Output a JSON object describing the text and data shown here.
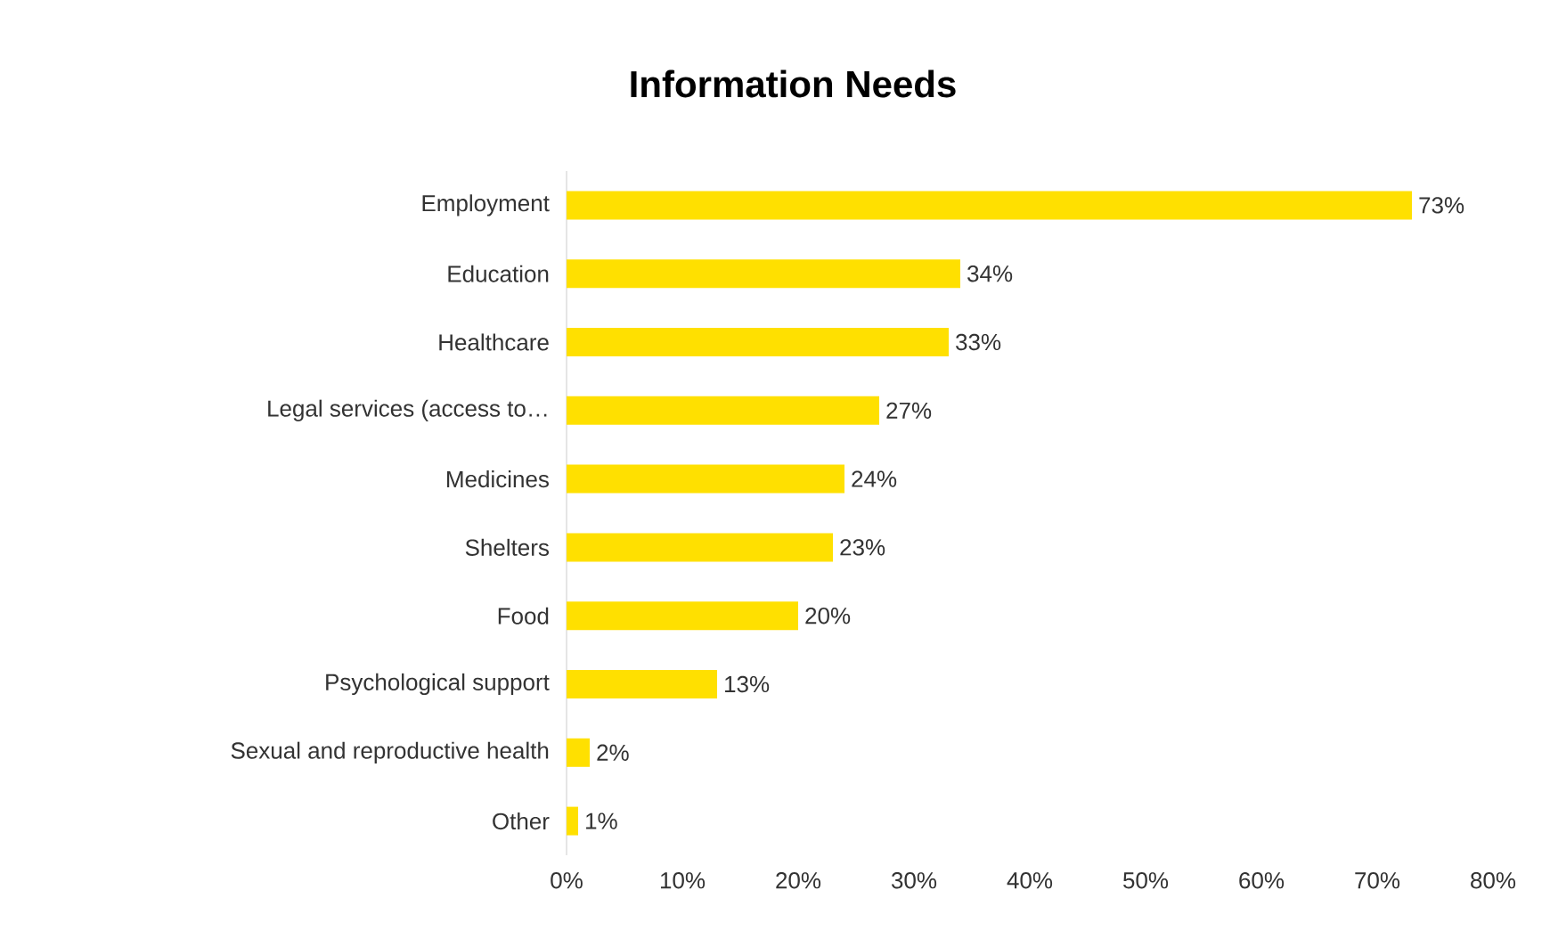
{
  "chart_data": {
    "type": "bar",
    "orientation": "horizontal",
    "title": "Information Needs",
    "categories": [
      "Employment",
      "Education",
      "Healthcare",
      "Legal services (access to…",
      "Medicines",
      "Shelters",
      "Food",
      "Psychological support",
      "Sexual and reproductive health",
      "Other"
    ],
    "values": [
      73,
      34,
      33,
      27,
      24,
      23,
      20,
      13,
      2,
      1
    ],
    "value_labels": [
      "73%",
      "34%",
      "33%",
      "27%",
      "24%",
      "23%",
      "20%",
      "13%",
      "2%",
      "1%"
    ],
    "color": "#ffe000",
    "xlim": [
      0,
      80
    ],
    "xticks": [
      {
        "value": 0,
        "label": "0%"
      },
      {
        "value": 10,
        "label": "10%"
      },
      {
        "value": 20,
        "label": "20%"
      },
      {
        "value": 30,
        "label": "30%"
      },
      {
        "value": 40,
        "label": "40%"
      },
      {
        "value": 50,
        "label": "50%"
      },
      {
        "value": 60,
        "label": "60%"
      },
      {
        "value": 70,
        "label": "70%"
      },
      {
        "value": 80,
        "label": "80%"
      }
    ]
  }
}
